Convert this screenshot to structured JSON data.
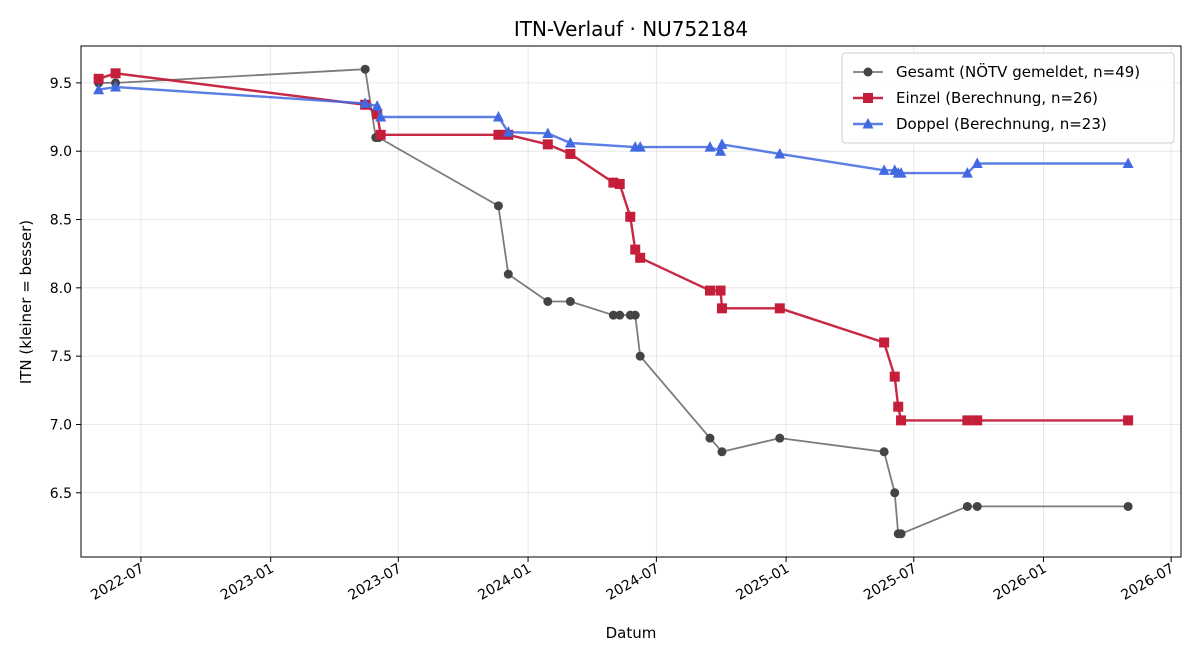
{
  "chart_data": {
    "type": "line",
    "title": "ITN-Verlauf · NU752184",
    "xlabel": "Datum",
    "ylabel": "ITN  (kleiner = besser)",
    "ylim": [
      6.03,
      9.77
    ],
    "xlim": [
      "2022-04-07",
      "2026-07-15"
    ],
    "grid": true,
    "legend_position": "top-right",
    "x_ticks": [
      "2022-07-01",
      "2023-01-01",
      "2023-07-01",
      "2024-01-01",
      "2024-07-01",
      "2025-01-01",
      "2025-07-01",
      "2026-01-01",
      "2026-07-01"
    ],
    "x_tick_labels": [
      "2022-07",
      "2023-01",
      "2023-07",
      "2024-01",
      "2024-07",
      "2025-01",
      "2025-07",
      "2026-01",
      "2026-07"
    ],
    "y_ticks": [
      6.5,
      7.0,
      7.5,
      8.0,
      8.5,
      9.0,
      9.5
    ],
    "y_tick_labels": [
      "6.5",
      "7.0",
      "7.5",
      "8.0",
      "8.5",
      "9.0",
      "9.5"
    ],
    "series": [
      {
        "name": "Gesamt (NÖTV gemeldet, n=49)",
        "color": "#444444",
        "marker": "circle",
        "line_opacity": 0.7,
        "points": [
          {
            "x": "2022-05-02",
            "y": 9.5
          },
          {
            "x": "2022-05-26",
            "y": 9.5
          },
          {
            "x": "2023-05-15",
            "y": 9.6
          },
          {
            "x": "2023-05-30",
            "y": 9.1
          },
          {
            "x": "2023-06-03",
            "y": 9.1
          },
          {
            "x": "2023-11-20",
            "y": 8.6
          },
          {
            "x": "2023-12-04",
            "y": 8.1
          },
          {
            "x": "2024-01-29",
            "y": 7.9
          },
          {
            "x": "2024-03-01",
            "y": 7.9
          },
          {
            "x": "2024-05-01",
            "y": 7.8
          },
          {
            "x": "2024-05-10",
            "y": 7.8
          },
          {
            "x": "2024-05-25",
            "y": 7.8
          },
          {
            "x": "2024-06-01",
            "y": 7.8
          },
          {
            "x": "2024-06-08",
            "y": 7.5
          },
          {
            "x": "2024-09-15",
            "y": 6.9
          },
          {
            "x": "2024-10-02",
            "y": 6.8
          },
          {
            "x": "2024-12-23",
            "y": 6.9
          },
          {
            "x": "2025-05-20",
            "y": 6.8
          },
          {
            "x": "2025-06-04",
            "y": 6.5
          },
          {
            "x": "2025-06-09",
            "y": 6.2
          },
          {
            "x": "2025-06-13",
            "y": 6.2
          },
          {
            "x": "2025-09-15",
            "y": 6.4
          },
          {
            "x": "2025-09-29",
            "y": 6.4
          },
          {
            "x": "2026-05-01",
            "y": 6.4
          }
        ]
      },
      {
        "name": "Einzel (Berechnung, n=26)",
        "color": "#c41e3a",
        "marker": "square",
        "line_opacity": 0.95,
        "points": [
          {
            "x": "2022-05-02",
            "y": 9.53
          },
          {
            "x": "2022-05-26",
            "y": 9.57
          },
          {
            "x": "2023-05-15",
            "y": 9.34
          },
          {
            "x": "2023-06-01",
            "y": 9.27
          },
          {
            "x": "2023-06-06",
            "y": 9.12
          },
          {
            "x": "2023-11-20",
            "y": 9.12
          },
          {
            "x": "2023-12-04",
            "y": 9.12
          },
          {
            "x": "2024-01-29",
            "y": 9.05
          },
          {
            "x": "2024-03-01",
            "y": 8.98
          },
          {
            "x": "2024-05-01",
            "y": 8.77
          },
          {
            "x": "2024-05-10",
            "y": 8.76
          },
          {
            "x": "2024-05-25",
            "y": 8.52
          },
          {
            "x": "2024-06-01",
            "y": 8.28
          },
          {
            "x": "2024-06-08",
            "y": 8.22
          },
          {
            "x": "2024-09-15",
            "y": 7.98
          },
          {
            "x": "2024-09-30",
            "y": 7.98
          },
          {
            "x": "2024-10-02",
            "y": 7.85
          },
          {
            "x": "2024-12-23",
            "y": 7.85
          },
          {
            "x": "2025-05-20",
            "y": 7.6
          },
          {
            "x": "2025-06-04",
            "y": 7.35
          },
          {
            "x": "2025-06-09",
            "y": 7.13
          },
          {
            "x": "2025-06-13",
            "y": 7.03
          },
          {
            "x": "2025-09-15",
            "y": 7.03
          },
          {
            "x": "2025-09-29",
            "y": 7.03
          },
          {
            "x": "2026-05-01",
            "y": 7.03
          }
        ]
      },
      {
        "name": "Doppel (Berechnung, n=23)",
        "color": "#4169e1",
        "marker": "triangle",
        "line_opacity": 0.85,
        "points": [
          {
            "x": "2022-05-02",
            "y": 9.45
          },
          {
            "x": "2022-05-26",
            "y": 9.47
          },
          {
            "x": "2023-05-15",
            "y": 9.35
          },
          {
            "x": "2023-06-01",
            "y": 9.33
          },
          {
            "x": "2023-06-06",
            "y": 9.25
          },
          {
            "x": "2023-11-20",
            "y": 9.25
          },
          {
            "x": "2023-12-04",
            "y": 9.14
          },
          {
            "x": "2024-01-29",
            "y": 9.13
          },
          {
            "x": "2024-03-01",
            "y": 9.06
          },
          {
            "x": "2024-06-01",
            "y": 9.03
          },
          {
            "x": "2024-06-08",
            "y": 9.03
          },
          {
            "x": "2024-09-15",
            "y": 9.03
          },
          {
            "x": "2024-09-30",
            "y": 9.0
          },
          {
            "x": "2024-10-02",
            "y": 9.05
          },
          {
            "x": "2024-12-23",
            "y": 8.98
          },
          {
            "x": "2025-05-20",
            "y": 8.86
          },
          {
            "x": "2025-06-04",
            "y": 8.86
          },
          {
            "x": "2025-06-09",
            "y": 8.84
          },
          {
            "x": "2025-06-13",
            "y": 8.84
          },
          {
            "x": "2025-09-15",
            "y": 8.84
          },
          {
            "x": "2025-09-29",
            "y": 8.91
          },
          {
            "x": "2026-05-01",
            "y": 8.91
          }
        ]
      }
    ]
  }
}
